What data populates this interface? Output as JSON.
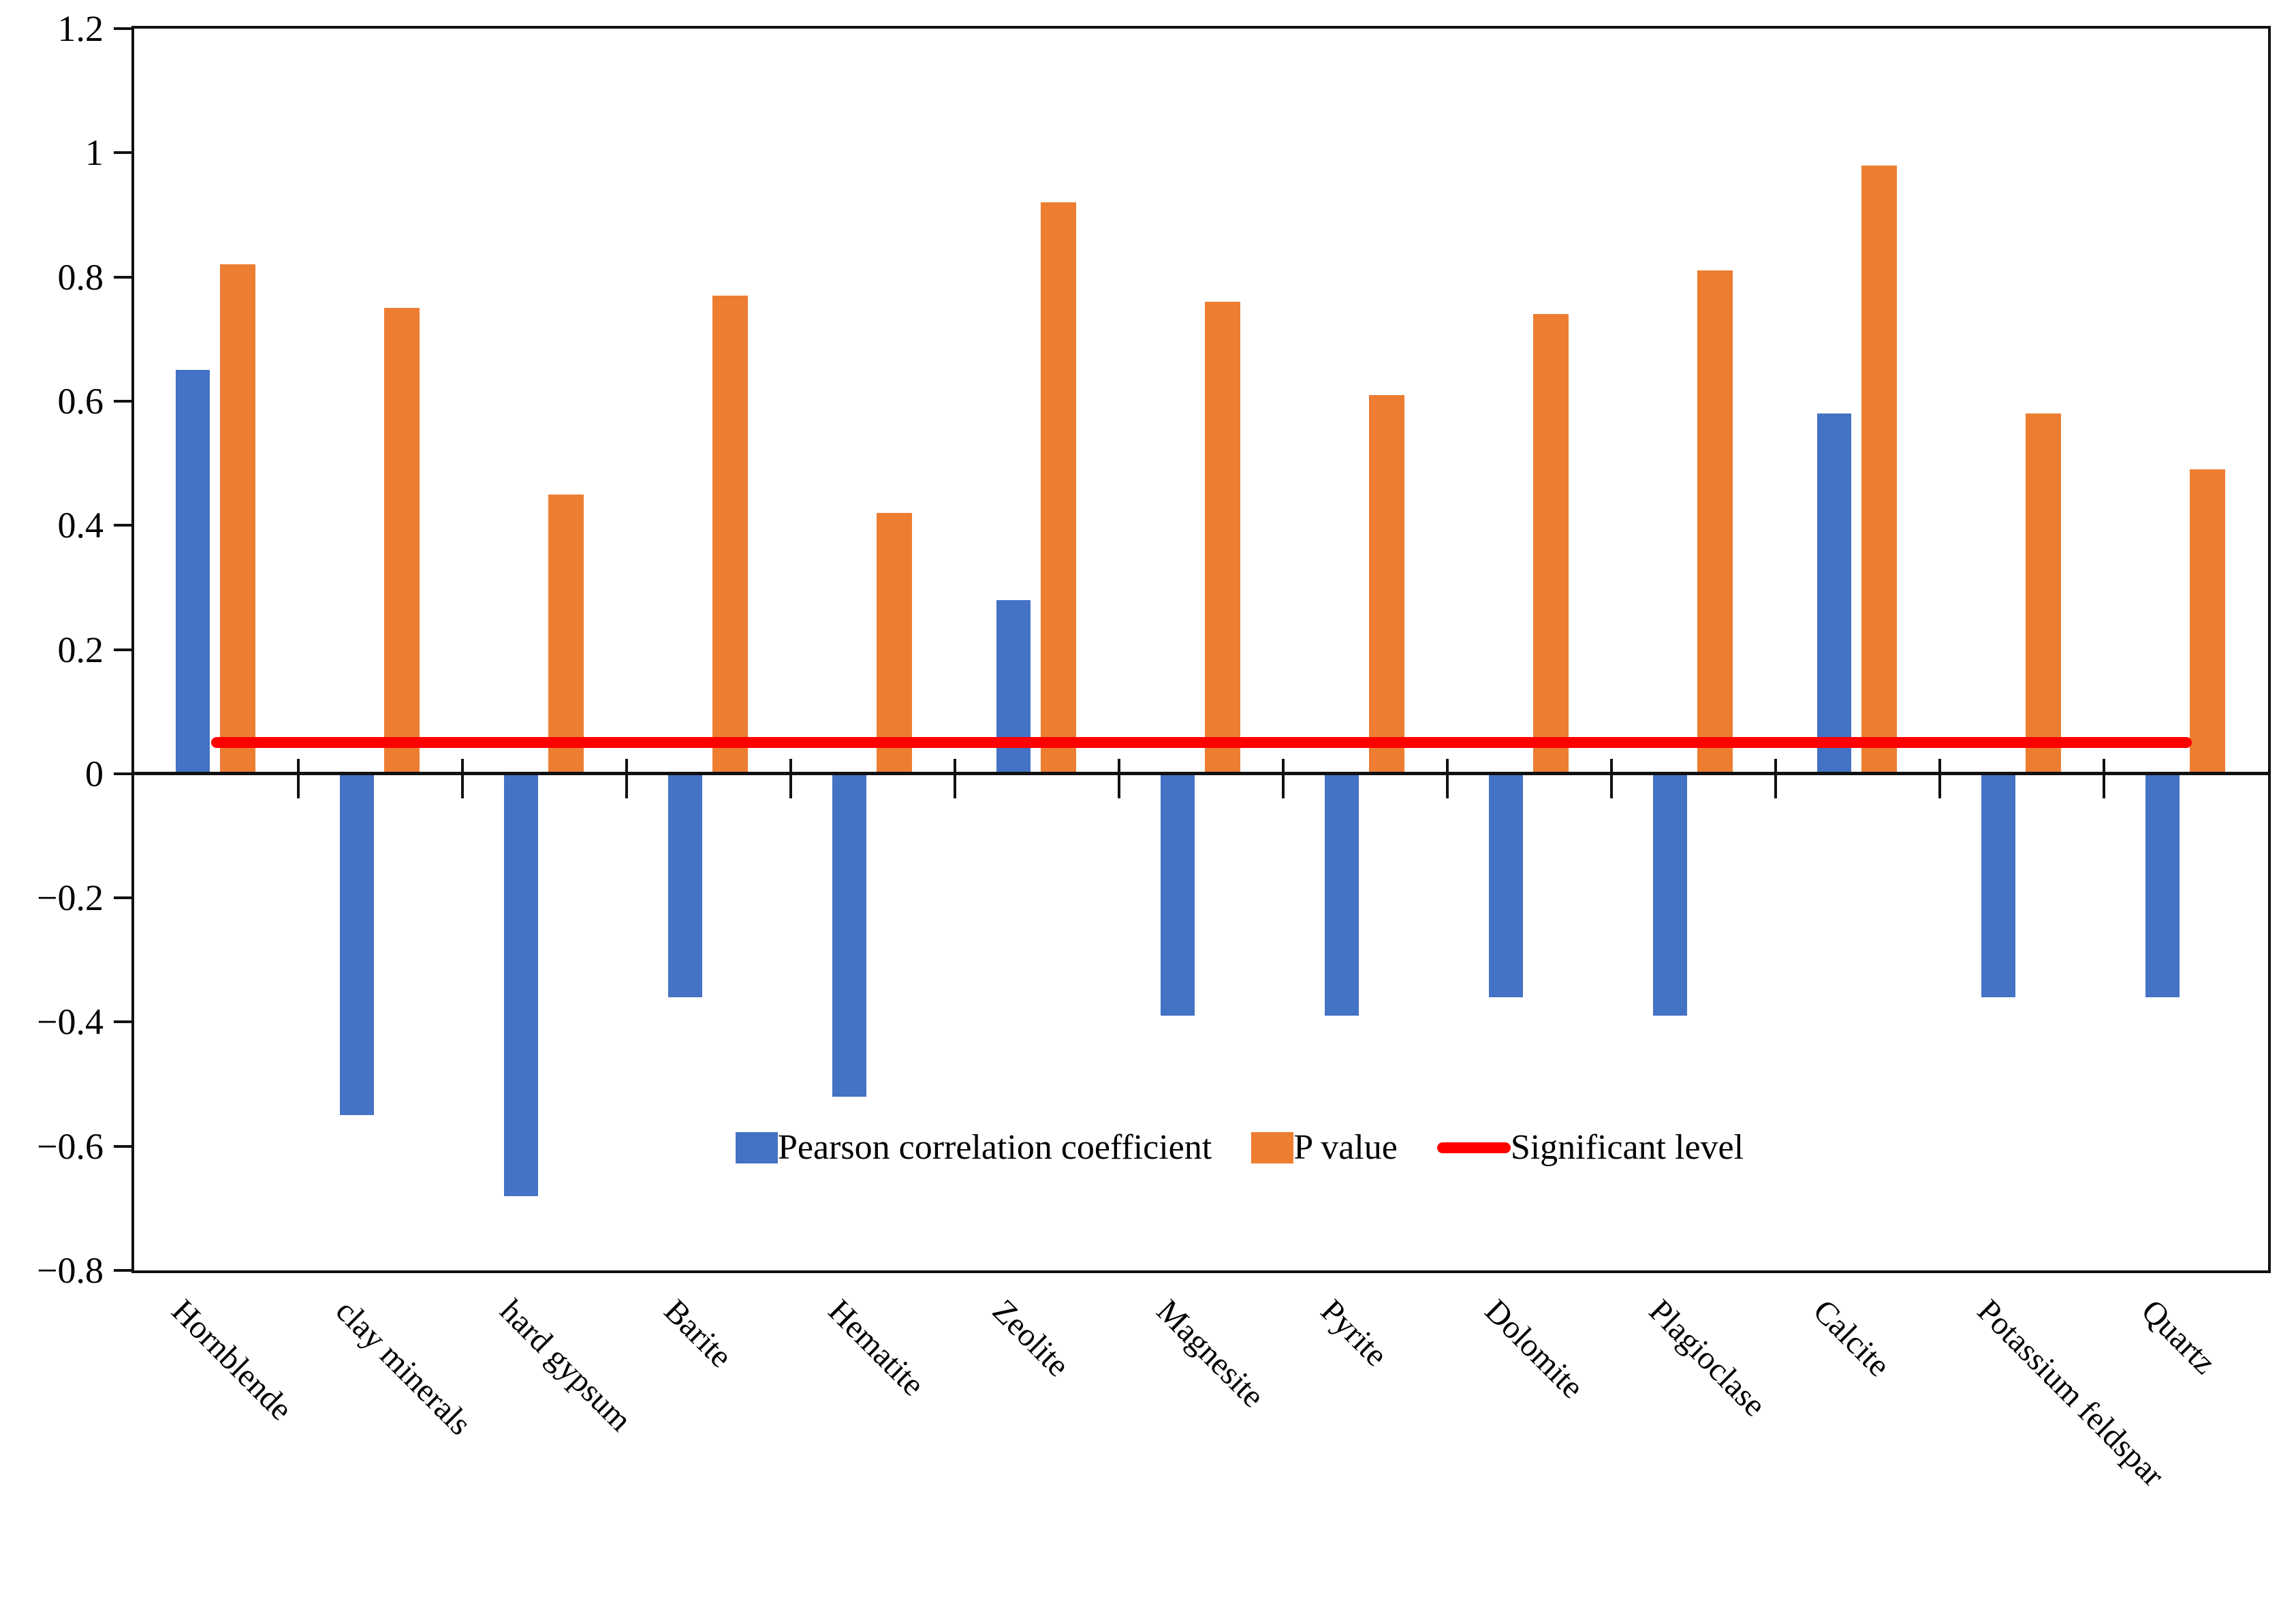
{
  "chart_data": {
    "type": "bar",
    "title": "",
    "xlabel": "",
    "ylabel": "",
    "categories": [
      "Hornblende",
      "clay minerals",
      "hard gypsum",
      "Barite",
      "Hematite",
      "Zeolite",
      "Magnesite",
      "Pyrite",
      "Dolomite",
      "Plagioclase",
      "Calcite",
      "Potassium feldspar",
      "Quartz"
    ],
    "series": [
      {
        "name": "Pearson correlation coefficient",
        "color": "#4472C4",
        "values": [
          0.65,
          -0.55,
          -0.68,
          -0.36,
          -0.52,
          0.28,
          -0.39,
          -0.39,
          -0.36,
          -0.39,
          0.58,
          -0.36,
          -0.36
        ]
      },
      {
        "name": "P value",
        "color": "#ED7D31",
        "values": [
          0.82,
          0.75,
          0.45,
          0.77,
          0.42,
          0.92,
          0.76,
          0.61,
          0.74,
          0.81,
          0.98,
          0.58,
          0.49
        ]
      }
    ],
    "significant_level": {
      "name": "Significant level",
      "value": 0.05,
      "color": "#FF0000"
    },
    "y_axis": {
      "min": -0.8,
      "max": 1.2,
      "tick_step": 0.2,
      "tick_labels": [
        "1.2",
        "1",
        "0.8",
        "0.6",
        "0.4",
        "0.2",
        "0",
        "−0.2",
        "−0.4",
        "−0.6",
        "−0.8"
      ]
    },
    "grid": "off",
    "legend_position": "inside-bottom"
  },
  "layout_colors": {
    "axis": "#111111",
    "background": "#ffffff"
  }
}
